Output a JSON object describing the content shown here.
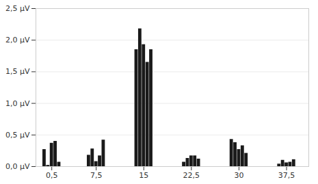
{
  "chart_data": {
    "type": "bar",
    "x": [
      0.5,
      7.5,
      15.0,
      22.5,
      30.0,
      37.5
    ],
    "series": [
      {
        "values": [
          0.27,
          0.18,
          1.85,
          0.07,
          0.43,
          0.04
        ]
      },
      {
        "values": [
          0.02,
          0.28,
          2.18,
          0.13,
          0.38,
          0.1
        ]
      },
      {
        "values": [
          0.37,
          0.08,
          1.93,
          0.17,
          0.27,
          0.06
        ]
      },
      {
        "values": [
          0.4,
          0.17,
          1.65,
          0.17,
          0.33,
          0.07
        ]
      },
      {
        "values": [
          0.07,
          0.42,
          1.85,
          0.12,
          0.21,
          0.11
        ]
      }
    ],
    "color": "#1a1a1a",
    "xlim": [
      -2.0,
      41.0
    ],
    "xticks": [
      {
        "value": 0.5,
        "label": "0,5"
      },
      {
        "value": 7.5,
        "label": "7,5"
      },
      15,
      {
        "value": 22.5,
        "label": "22,5"
      },
      30,
      {
        "value": 37.5,
        "label": "37,5"
      }
    ],
    "ylim": [
      0.0,
      2.5
    ],
    "yticks": [
      {
        "value": 0.0,
        "label": "0,0 μV"
      },
      {
        "value": 0.5,
        "label": "0,5 μV"
      },
      {
        "value": 1.0,
        "label": "1,0 μV"
      },
      {
        "value": 1.5,
        "label": "1,5 μV"
      },
      {
        "value": 2.0,
        "label": "2,0 μV"
      },
      {
        "value": 2.5,
        "label": "2,5 μV"
      }
    ],
    "grid": true
  }
}
